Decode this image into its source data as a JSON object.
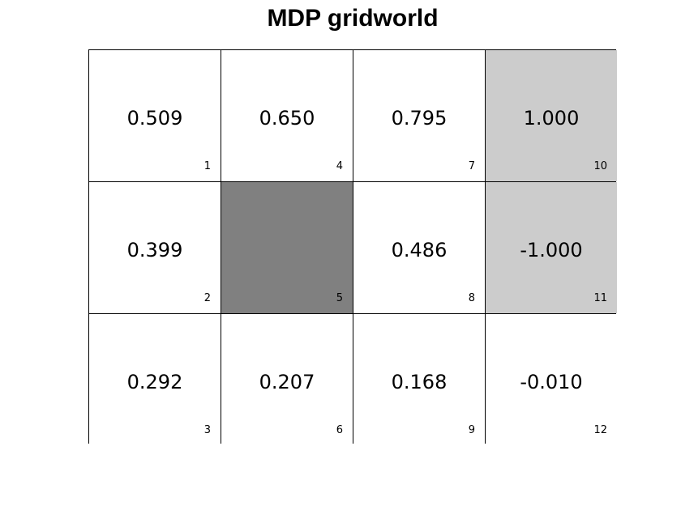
{
  "title": "MDP gridworld",
  "colors": {
    "normal": "#ffffff",
    "terminal": "#cccccc",
    "wall": "#808080",
    "border": "#000000"
  },
  "cells": [
    {
      "index": "1",
      "value": "0.509",
      "type": "normal"
    },
    {
      "index": "2",
      "value": "0.399",
      "type": "normal"
    },
    {
      "index": "3",
      "value": "0.292",
      "type": "normal"
    },
    {
      "index": "4",
      "value": "0.650",
      "type": "normal"
    },
    {
      "index": "5",
      "value": "",
      "type": "wall"
    },
    {
      "index": "6",
      "value": "0.207",
      "type": "normal"
    },
    {
      "index": "7",
      "value": "0.795",
      "type": "normal"
    },
    {
      "index": "8",
      "value": "0.486",
      "type": "normal"
    },
    {
      "index": "9",
      "value": "0.168",
      "type": "normal"
    },
    {
      "index": "10",
      "value": "1.000",
      "type": "terminal"
    },
    {
      "index": "11",
      "value": "-1.000",
      "type": "terminal"
    },
    {
      "index": "12",
      "value": "-0.010",
      "type": "normal"
    }
  ]
}
